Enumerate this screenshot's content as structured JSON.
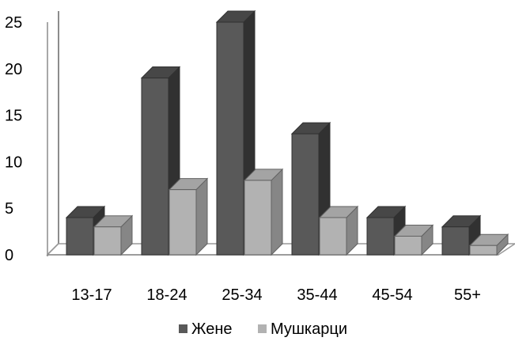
{
  "chart_data": {
    "type": "bar",
    "categories": [
      "13-17",
      "18-24",
      "25-34",
      "35-44",
      "45-54",
      "55+"
    ],
    "series": [
      {
        "name": "Жене",
        "values": [
          4,
          19,
          25,
          13,
          4,
          3
        ],
        "color": "#595959"
      },
      {
        "name": "Мушкарци",
        "values": [
          3,
          7,
          8,
          4,
          2,
          1
        ],
        "color": "#b2b2b2"
      }
    ],
    "y_ticks": [
      "0",
      "5",
      "10",
      "15",
      "20",
      "25"
    ],
    "ylim": [
      0,
      25
    ],
    "grid": false,
    "legend_position": "bottom",
    "style": "3d-clustered-column"
  }
}
